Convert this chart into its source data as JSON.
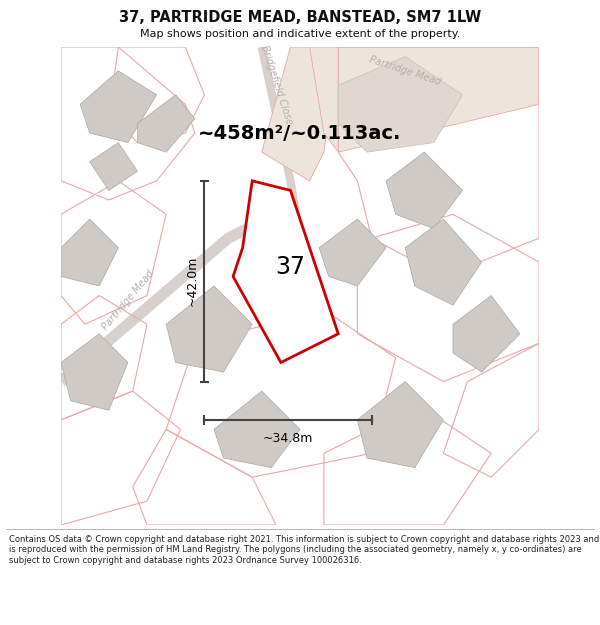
{
  "title": "37, PARTRIDGE MEAD, BANSTEAD, SM7 1LW",
  "subtitle": "Map shows position and indicative extent of the property.",
  "area_text": "~458m²/~0.113ac.",
  "number_label": "37",
  "dim_horizontal": "~34.8m",
  "dim_vertical": "~42.0m",
  "footer": "Contains OS data © Crown copyright and database right 2021. This information is subject to Crown copyright and database rights 2023 and is reproduced with the permission of HM Land Registry. The polygons (including the associated geometry, namely x, y co-ordinates) are subject to Crown copyright and database rights 2023 Ordnance Survey 100026316.",
  "street_label_1": "Bridgefield Close",
  "street_label_2": "Partridge Mead",
  "street_label_3": "Partridge Mead",
  "bg_color": "#f7f3f0",
  "neighbor_fill_gray": "#d0cac6",
  "neighbor_fill_tan": "#e0d8d0",
  "property_edge": "#cc0000",
  "property_fill": "#ffffff",
  "dim_color": "#444444",
  "street_color": "#b8aea8",
  "salmon_edge": "#e8a8a8",
  "title_color": "#111111",
  "footer_color": "#222222"
}
